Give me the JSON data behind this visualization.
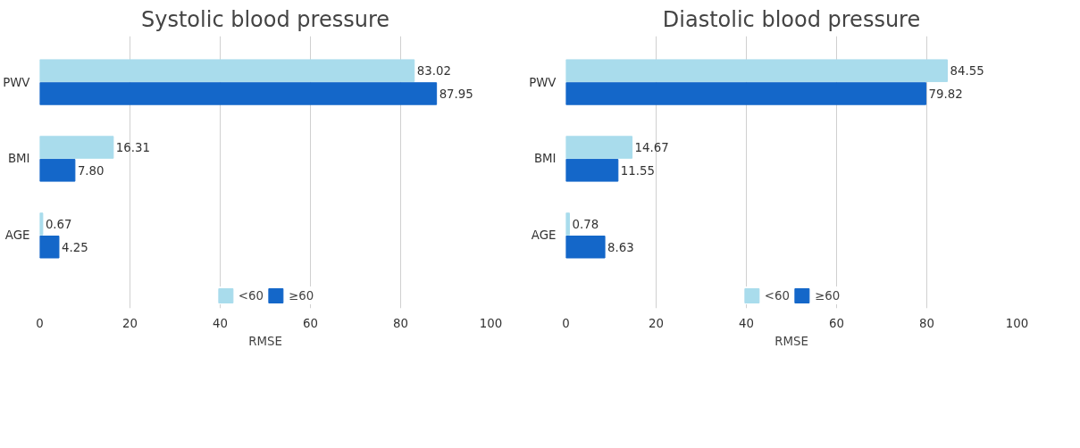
{
  "chart_data": [
    {
      "type": "bar",
      "orientation": "horizontal",
      "title": "Systolic blood pressure",
      "xlabel": "RMSE",
      "categories": [
        "PWV",
        "BMI",
        "AGE"
      ],
      "series": [
        {
          "name": "<60",
          "color": "#a9dcec",
          "values": [
            83.02,
            16.31,
            0.67
          ],
          "value_labels": [
            "83.02",
            "16.31",
            "0.67"
          ]
        },
        {
          "name": "≥60",
          "color": "#1467c9",
          "values": [
            87.95,
            7.8,
            4.25
          ],
          "value_labels": [
            "87.95",
            "7.80",
            "4.25"
          ]
        }
      ],
      "xlim": [
        0,
        100
      ],
      "xticks": [
        0,
        20,
        40,
        60,
        80,
        100
      ],
      "grid": "x",
      "legend": "bottom"
    },
    {
      "type": "bar",
      "orientation": "horizontal",
      "title": "Diastolic blood pressure",
      "xlabel": "RMSE",
      "categories": [
        "PWV",
        "BMI",
        "AGE"
      ],
      "series": [
        {
          "name": "<60",
          "color": "#a9dcec",
          "values": [
            84.55,
            14.67,
            0.78
          ],
          "value_labels": [
            "84.55",
            "14.67",
            "0.78"
          ]
        },
        {
          "name": "≥60",
          "color": "#1467c9",
          "values": [
            79.82,
            11.55,
            8.63
          ],
          "value_labels": [
            "79.82",
            "11.55",
            "8.63"
          ]
        }
      ],
      "xlim": [
        0,
        100
      ],
      "xticks": [
        0,
        20,
        40,
        60,
        80,
        100
      ],
      "grid": "x",
      "legend": "bottom"
    }
  ]
}
